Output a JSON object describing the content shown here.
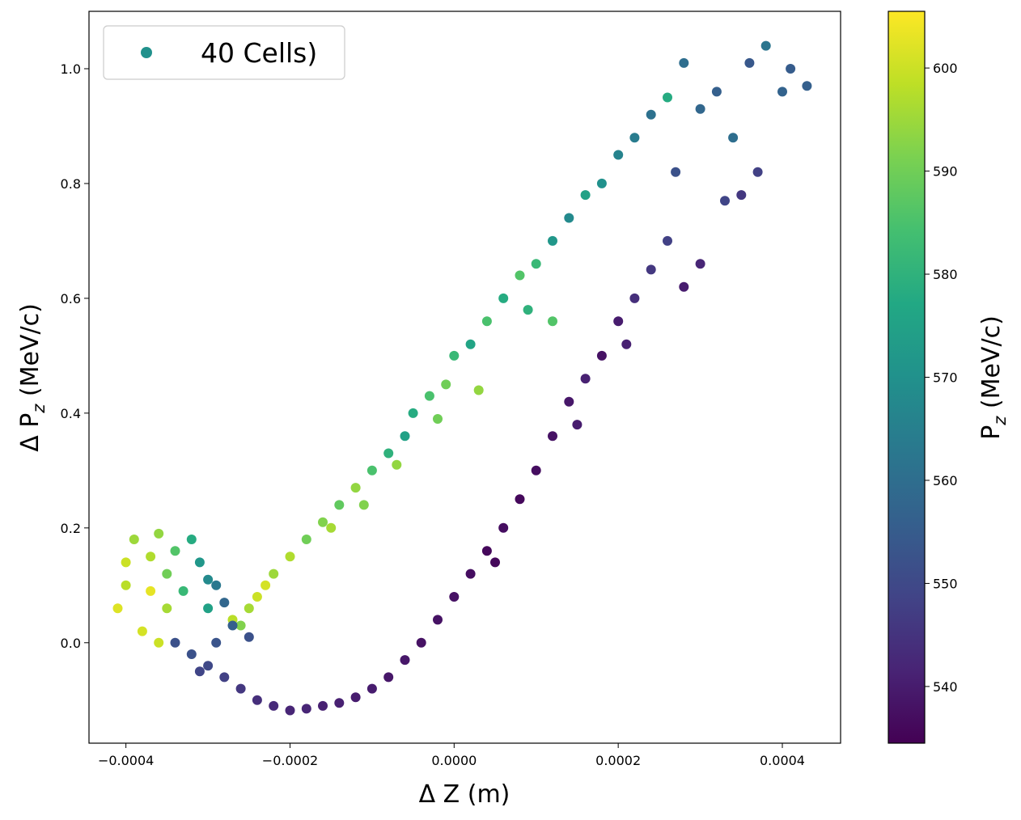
{
  "chart_data": {
    "type": "scatter",
    "xlabel": "Δ Z (m)",
    "ylabel_prefix": "Δ P",
    "ylabel_sub": "z",
    "ylabel_suffix": " (MeV/c)",
    "xlim": [
      -0.000445,
      0.000471
    ],
    "ylim": [
      -0.175,
      1.1
    ],
    "xticks": [
      -0.0004,
      -0.0002,
      0.0,
      0.0002,
      0.0004
    ],
    "xtick_labels": [
      "−0.0004",
      "−0.0002",
      "0.0000",
      "0.0002",
      "0.0004"
    ],
    "yticks": [
      0.0,
      0.2,
      0.4,
      0.6,
      0.8,
      1.0
    ],
    "ytick_labels": [
      "0.0",
      "0.2",
      "0.4",
      "0.6",
      "0.8",
      "1.0"
    ],
    "legend": {
      "label": "40 Cells)",
      "position": "top-left",
      "marker_color": "#21918c"
    },
    "colorbar": {
      "label_prefix": "P",
      "label_sub": "z",
      "label_suffix": " (MeV/c)",
      "range": [
        534.5,
        605.5
      ],
      "ticks": [
        540,
        550,
        560,
        570,
        580,
        590,
        600
      ],
      "tick_labels": [
        "540",
        "550",
        "560",
        "570",
        "580",
        "590",
        "600"
      ],
      "colormap": [
        "#440154",
        "#482475",
        "#414487",
        "#355f8d",
        "#2a788e",
        "#21918c",
        "#22a884",
        "#44bf70",
        "#7ad151",
        "#bddf26",
        "#fde725"
      ]
    },
    "series": [
      {
        "description": "particle cloud; each point [dz, dpz, pz]",
        "points": [
          [
            -0.0004,
            0.14,
            600
          ],
          [
            -0.0004,
            0.1,
            598
          ],
          [
            -0.00041,
            0.06,
            602
          ],
          [
            -0.00039,
            0.18,
            595
          ],
          [
            -0.00038,
            0.02,
            601
          ],
          [
            -0.00037,
            0.15,
            597
          ],
          [
            -0.00037,
            0.09,
            603
          ],
          [
            -0.00036,
            0.19,
            594
          ],
          [
            -0.00036,
            0.0,
            600
          ],
          [
            -0.00035,
            0.12,
            590
          ],
          [
            -0.00035,
            0.06,
            596
          ],
          [
            -0.00034,
            0.16,
            586
          ],
          [
            -0.00033,
            0.09,
            582
          ],
          [
            -0.00032,
            0.18,
            578
          ],
          [
            -0.00031,
            0.14,
            572
          ],
          [
            -0.0003,
            0.11,
            568
          ],
          [
            -0.0003,
            0.06,
            575
          ],
          [
            -0.00029,
            0.1,
            563
          ],
          [
            -0.00028,
            0.07,
            558
          ],
          [
            -0.00027,
            0.04,
            598
          ],
          [
            -0.00026,
            0.03,
            592
          ],
          [
            -0.00025,
            0.06,
            596
          ],
          [
            -0.00024,
            0.08,
            600
          ],
          [
            -0.00023,
            0.1,
            601
          ],
          [
            -0.00022,
            0.12,
            595
          ],
          [
            -0.0002,
            0.15,
            597
          ],
          [
            -0.00018,
            0.18,
            590
          ],
          [
            -0.00016,
            0.21,
            592
          ],
          [
            -0.00014,
            0.24,
            588
          ],
          [
            -0.00012,
            0.27,
            594
          ],
          [
            -0.0001,
            0.3,
            585
          ],
          [
            -8e-05,
            0.33,
            580
          ],
          [
            -6e-05,
            0.36,
            575
          ],
          [
            -5e-05,
            0.4,
            578
          ],
          [
            -3e-05,
            0.43,
            585
          ],
          [
            -1e-05,
            0.45,
            590
          ],
          [
            0.0,
            0.5,
            582
          ],
          [
            2e-05,
            0.52,
            576
          ],
          [
            4e-05,
            0.56,
            585
          ],
          [
            6e-05,
            0.6,
            578
          ],
          [
            8e-05,
            0.64,
            586
          ],
          [
            0.0001,
            0.66,
            582
          ],
          [
            0.00012,
            0.7,
            572
          ],
          [
            0.00014,
            0.74,
            568
          ],
          [
            0.00016,
            0.78,
            575
          ],
          [
            0.00018,
            0.8,
            570
          ],
          [
            0.0002,
            0.85,
            566
          ],
          [
            0.00022,
            0.88,
            564
          ],
          [
            0.00024,
            0.92,
            561
          ],
          [
            0.00026,
            0.95,
            578
          ],
          [
            0.00028,
            1.01,
            560
          ],
          [
            0.0003,
            0.93,
            558
          ],
          [
            0.00032,
            0.96,
            556
          ],
          [
            0.00034,
            0.88,
            560
          ],
          [
            0.00036,
            1.01,
            554
          ],
          [
            0.00038,
            1.04,
            562
          ],
          [
            0.0004,
            0.96,
            557
          ],
          [
            0.00041,
            1.0,
            555
          ],
          [
            0.00043,
            0.97,
            556
          ],
          [
            0.00037,
            0.82,
            548
          ],
          [
            0.00035,
            0.78,
            546
          ],
          [
            0.0003,
            0.66,
            542
          ],
          [
            0.00028,
            0.62,
            540
          ],
          [
            0.00026,
            0.7,
            548
          ],
          [
            0.00024,
            0.65,
            546
          ],
          [
            0.00022,
            0.6,
            544
          ],
          [
            0.0002,
            0.56,
            540
          ],
          [
            0.00018,
            0.5,
            538
          ],
          [
            0.00016,
            0.46,
            541
          ],
          [
            0.00014,
            0.42,
            539
          ],
          [
            0.00012,
            0.36,
            538
          ],
          [
            0.0001,
            0.3,
            537
          ],
          [
            8e-05,
            0.25,
            536
          ],
          [
            6e-05,
            0.2,
            537
          ],
          [
            4e-05,
            0.16,
            536
          ],
          [
            2e-05,
            0.12,
            537
          ],
          [
            0.0,
            0.08,
            538
          ],
          [
            -2e-05,
            0.04,
            538
          ],
          [
            -4e-05,
            0.0,
            538
          ],
          [
            -6e-05,
            -0.03,
            539
          ],
          [
            -8e-05,
            -0.06,
            539
          ],
          [
            -0.0001,
            -0.08,
            540
          ],
          [
            -0.00012,
            -0.095,
            540
          ],
          [
            -0.00014,
            -0.105,
            541
          ],
          [
            -0.00016,
            -0.11,
            541
          ],
          [
            -0.00018,
            -0.115,
            542
          ],
          [
            -0.0002,
            -0.118,
            542
          ],
          [
            -0.00022,
            -0.11,
            543
          ],
          [
            -0.00024,
            -0.1,
            544
          ],
          [
            -0.00026,
            -0.08,
            546
          ],
          [
            -0.00028,
            -0.06,
            548
          ],
          [
            -0.0003,
            -0.04,
            550
          ],
          [
            -0.00032,
            -0.02,
            552
          ],
          [
            -0.00034,
            0.0,
            552
          ],
          [
            -0.00031,
            -0.05,
            549
          ],
          [
            -0.00029,
            0.0,
            553
          ],
          [
            -0.00027,
            0.03,
            556
          ],
          [
            -0.00025,
            0.01,
            552
          ],
          [
            5e-05,
            0.14,
            536
          ],
          [
            0.00015,
            0.38,
            540
          ],
          [
            0.00021,
            0.52,
            541
          ],
          [
            0.00033,
            0.77,
            549
          ],
          [
            0.00027,
            0.82,
            552
          ],
          [
            0.00012,
            0.56,
            586
          ],
          [
            9e-05,
            0.58,
            580
          ],
          [
            -0.00015,
            0.2,
            596
          ],
          [
            -0.00011,
            0.24,
            592
          ],
          [
            -7e-05,
            0.31,
            594
          ],
          [
            -2e-05,
            0.39,
            590
          ],
          [
            3e-05,
            0.44,
            594
          ]
        ]
      }
    ]
  }
}
